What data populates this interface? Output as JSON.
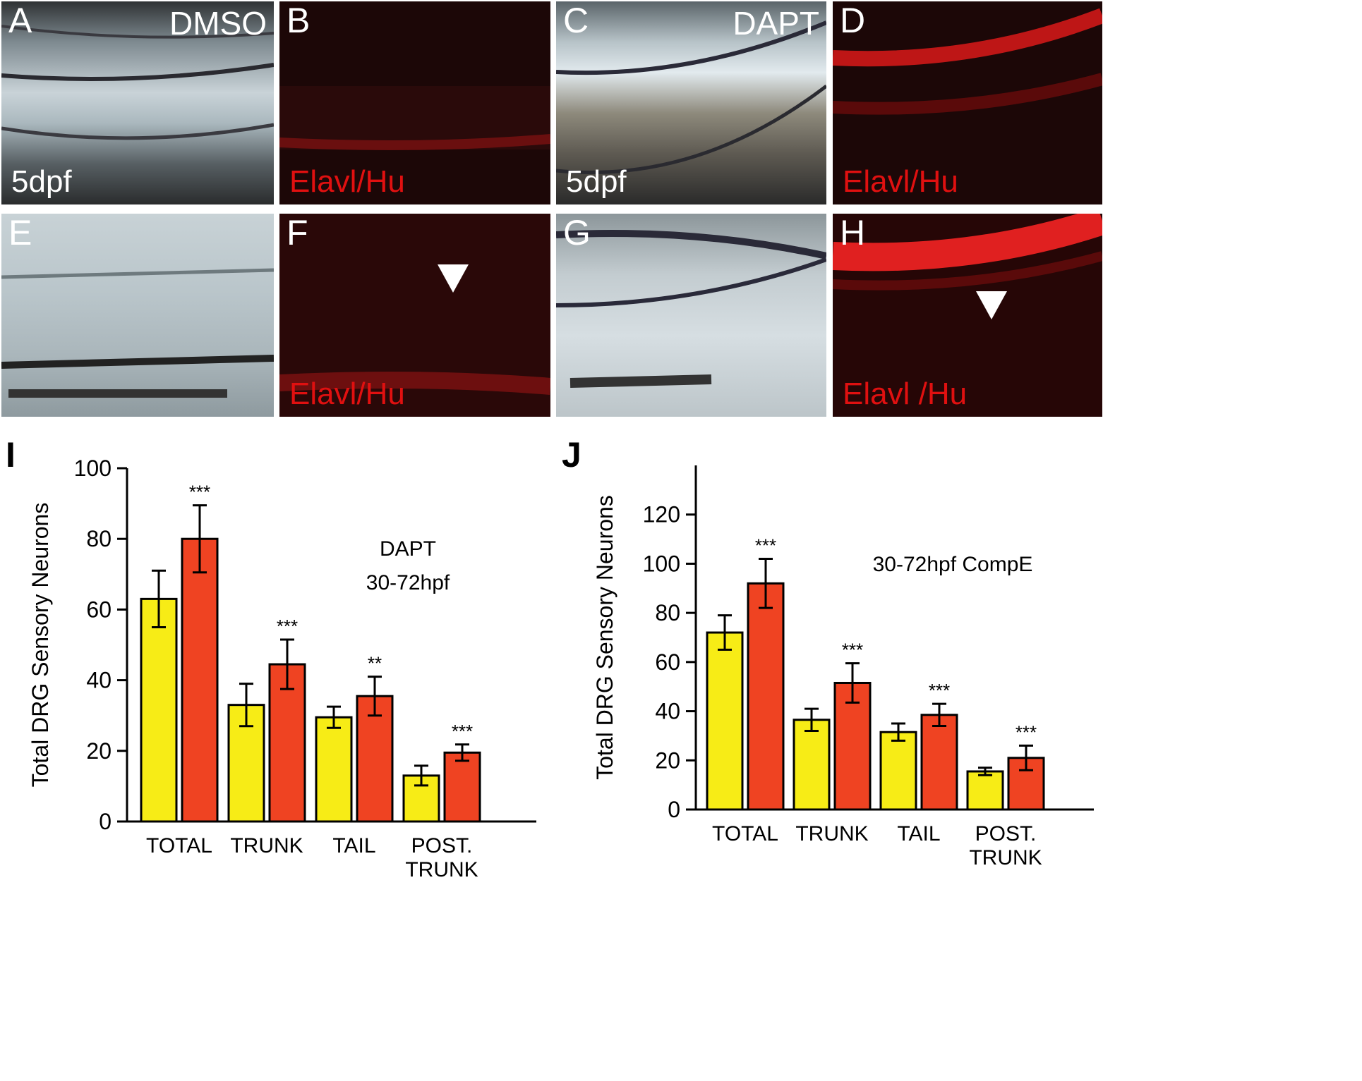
{
  "panels": {
    "A": {
      "letter": "A",
      "top_label": "DMSO",
      "bottom_label": "5dpf"
    },
    "B": {
      "letter": "B",
      "bottom_label": "Elavl/Hu"
    },
    "C": {
      "letter": "C",
      "top_label": "DAPT",
      "bottom_label": "5dpf"
    },
    "D": {
      "letter": "D",
      "bottom_label": "Elavl/Hu"
    },
    "E": {
      "letter": "E"
    },
    "F": {
      "letter": "F",
      "bottom_label": "Elavl/Hu"
    },
    "G": {
      "letter": "G"
    },
    "H": {
      "letter": "H",
      "bottom_label": "Elavl /Hu"
    }
  },
  "colors": {
    "control": "#f7ec16",
    "treated": "#ef4322",
    "fluorescence": "#e01010"
  },
  "chart_data": [
    {
      "panel_letter": "I",
      "type": "bar",
      "categories": [
        "TOTAL",
        "TRUNK",
        "TAIL",
        "POST. TRUNK"
      ],
      "series": [
        {
          "values": [
            63,
            33,
            29.5,
            13
          ],
          "errors": [
            8,
            6,
            3,
            2.8
          ]
        },
        {
          "values": [
            80,
            44.5,
            35.5,
            19.5
          ],
          "errors": [
            9.5,
            7,
            5.5,
            2.3
          ]
        }
      ],
      "significance": [
        "***",
        "***",
        "**",
        "***"
      ],
      "annotation_lines": [
        "DAPT",
        "30-72hpf"
      ],
      "ylabel": "Total DRG Sensory Neurons",
      "ylim": [
        0,
        100
      ],
      "yticks": [
        "0",
        "20",
        "40",
        "60",
        "80",
        "100"
      ]
    },
    {
      "panel_letter": "J",
      "type": "bar",
      "categories": [
        "TOTAL",
        "TRUNK",
        "TAIL",
        "POST. TRUNK"
      ],
      "series": [
        {
          "values": [
            72,
            36.5,
            31.5,
            15.5
          ],
          "errors": [
            7,
            4.5,
            3.5,
            1.5
          ]
        },
        {
          "values": [
            92,
            51.5,
            38.5,
            21
          ],
          "errors": [
            10,
            8,
            4.5,
            5
          ]
        }
      ],
      "significance": [
        "***",
        "***",
        "***",
        "***"
      ],
      "annotation_lines": [
        "30-72hpf CompE"
      ],
      "ylabel": "Total DRG Sensory Neurons",
      "ylim": [
        0,
        140
      ],
      "yticks": [
        "0",
        "20",
        "40",
        "60",
        "80",
        "100",
        "120"
      ]
    }
  ]
}
